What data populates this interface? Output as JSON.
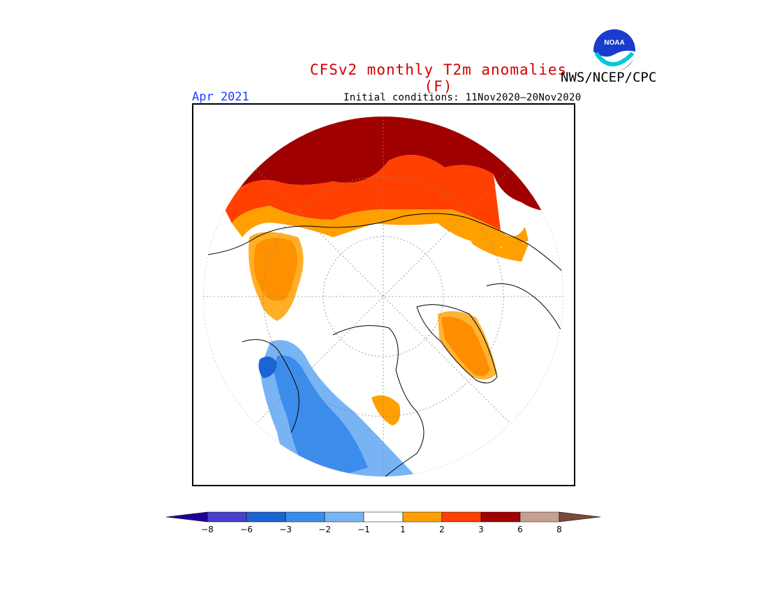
{
  "title": "CFSv2 monthly T2m anomalies (F)",
  "org": "NWS/NCEP/CPC",
  "logo_text": "NOAA",
  "valid_month": "Apr 2021",
  "initial_conditions": "Initial conditions: 11Nov2020–20Nov2020",
  "colors": {
    "title": "#d40000",
    "month": "#1c3cff",
    "cold_extreme": "#1c0096",
    "warm_extreme": "#7a4a3a"
  },
  "legend": {
    "tick_labels": [
      "−8",
      "−6",
      "−3",
      "−2",
      "−1",
      "1",
      "2",
      "3",
      "6",
      "8"
    ],
    "bins": [
      {
        "range": "< -8",
        "color": "#20009a"
      },
      {
        "range": "-8 to -6",
        "color": "#4b3fd0"
      },
      {
        "range": "-6 to -3",
        "color": "#1c64d4"
      },
      {
        "range": "-3 to -2",
        "color": "#3c8cec"
      },
      {
        "range": "-2 to -1",
        "color": "#78b4f4"
      },
      {
        "range": "-1 to 1",
        "color": "#ffffff"
      },
      {
        "range": "1 to 2",
        "color": "#ffa000"
      },
      {
        "range": "2 to 3",
        "color": "#ff4000"
      },
      {
        "range": "3 to 6",
        "color": "#a00000"
      },
      {
        "range": "6 to 8",
        "color": "#c8a090"
      },
      {
        "range": "> 8",
        "color": "#7a4a3a"
      }
    ]
  }
}
